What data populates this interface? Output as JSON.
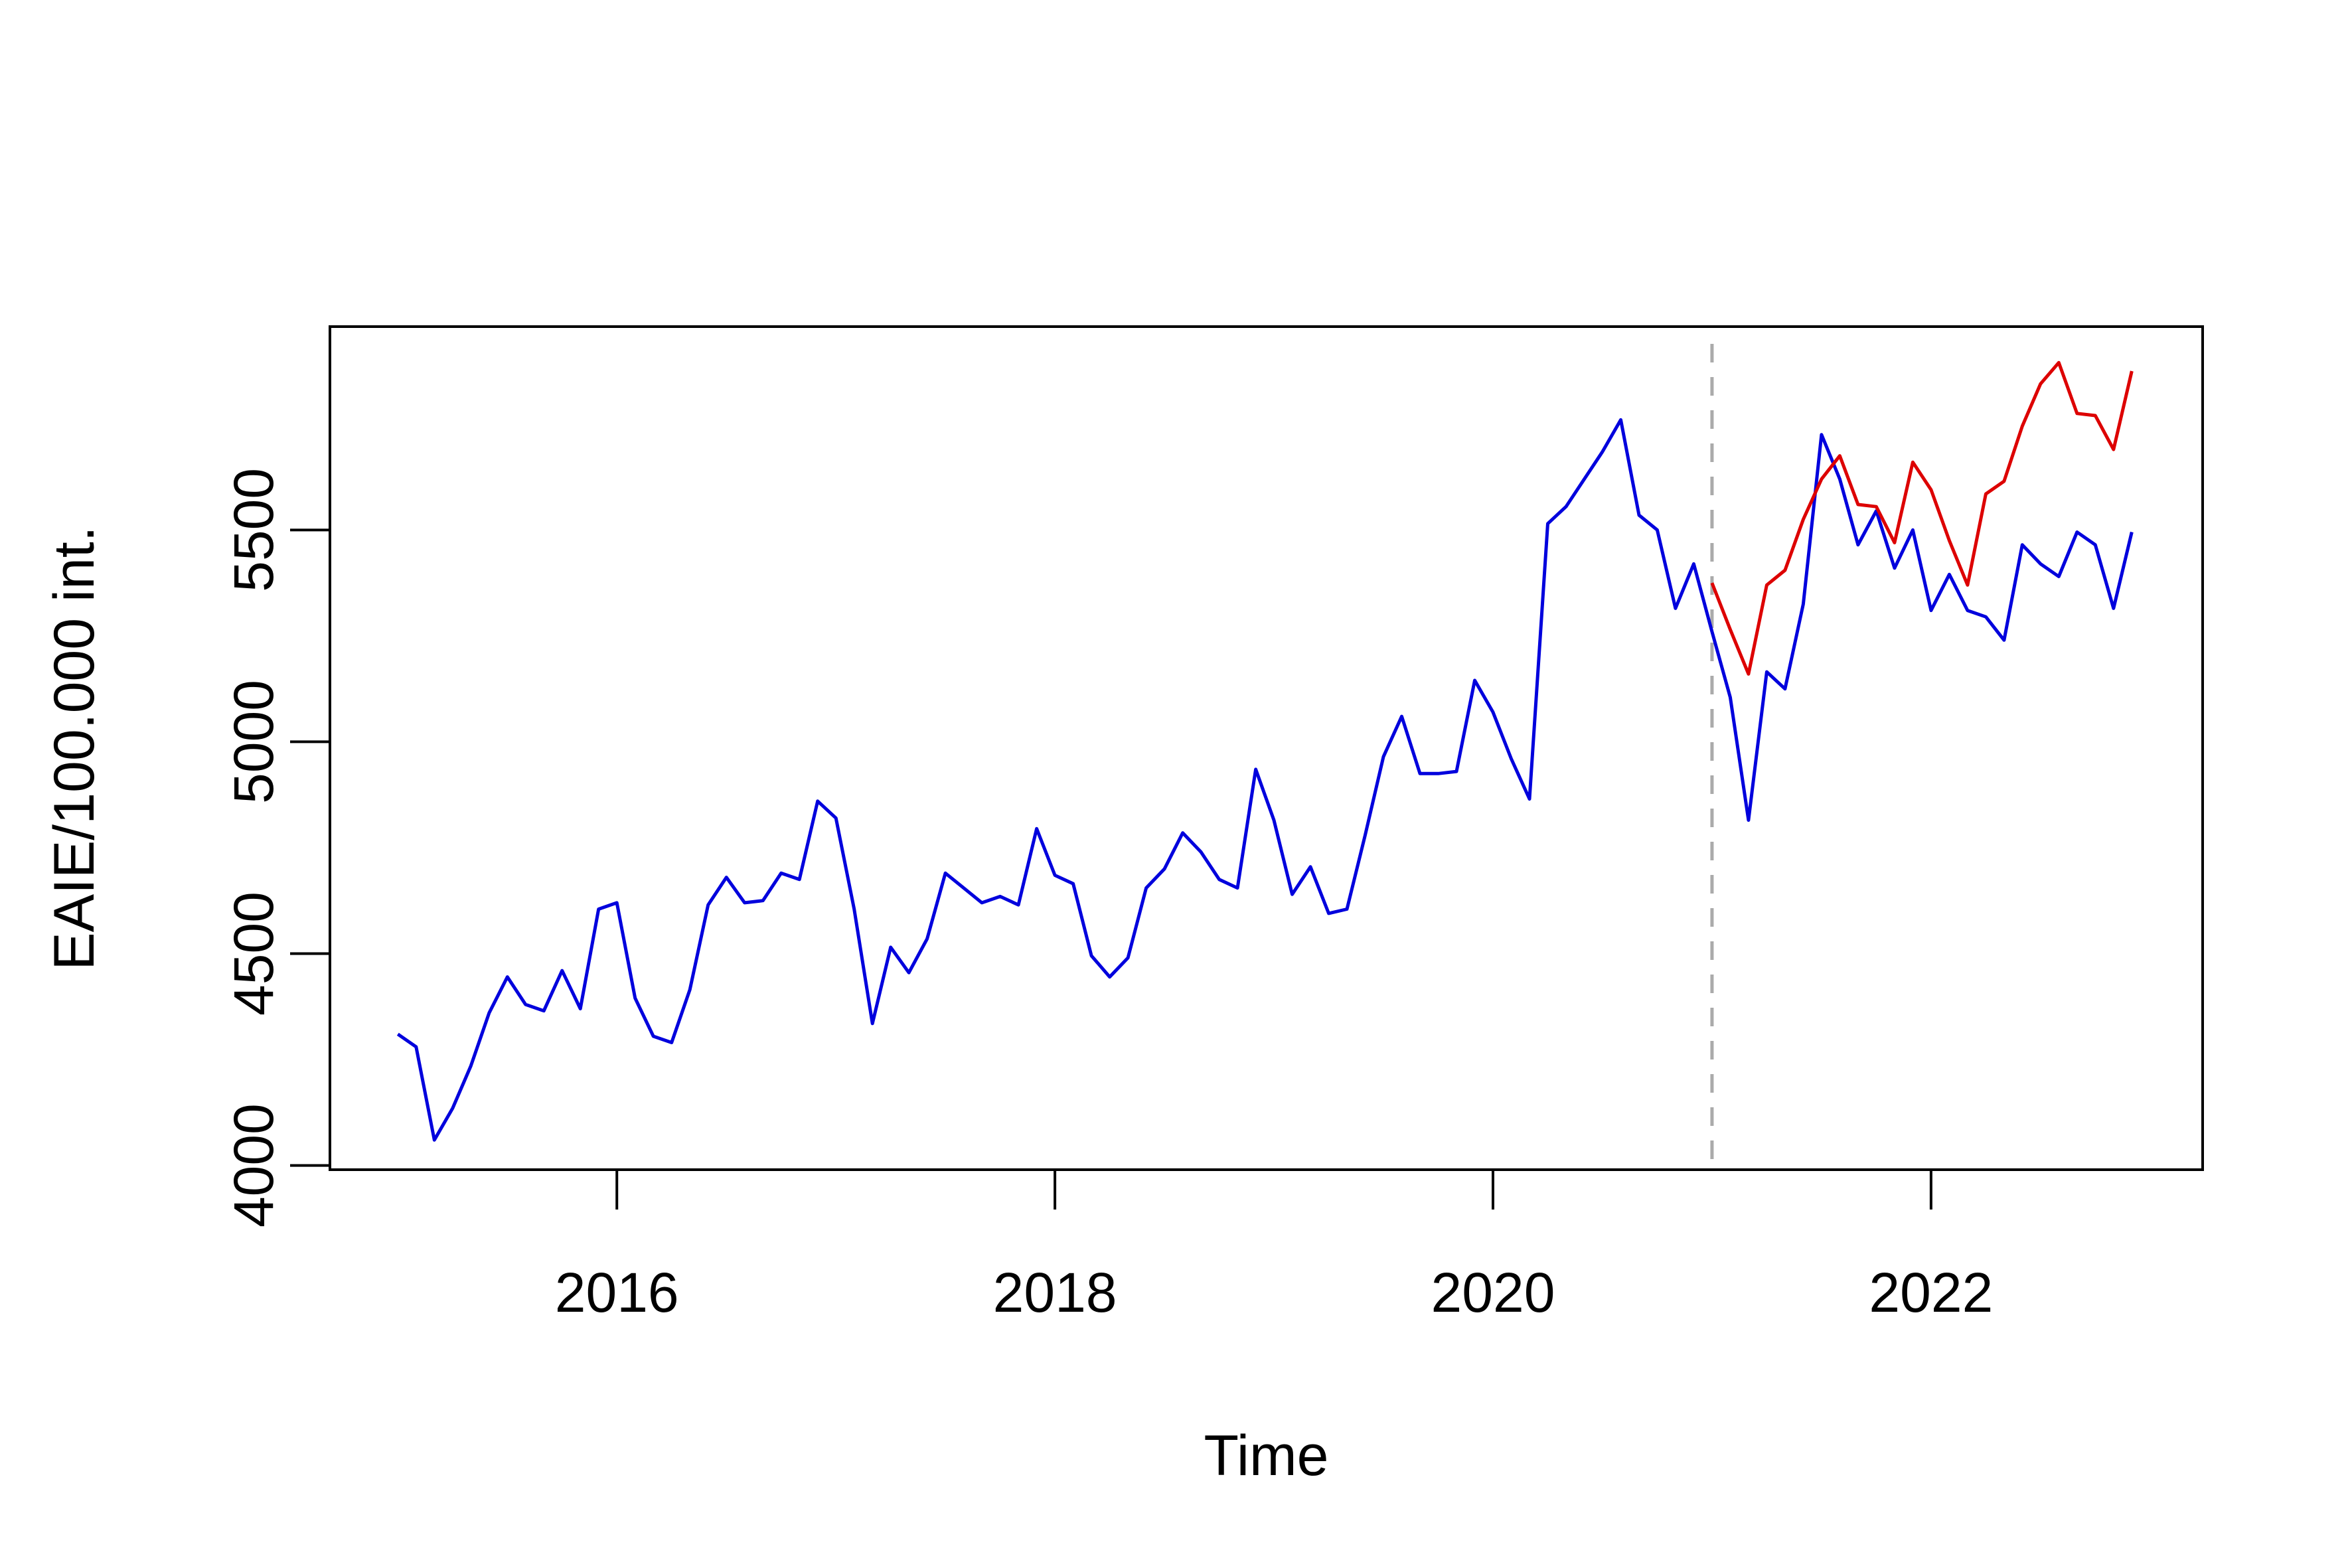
{
  "chart_data": {
    "type": "line",
    "title": "",
    "xlabel": "Time",
    "ylabel": "EAIE/100.000 int.",
    "xlim": [
      2014.69,
      2023.24
    ],
    "ylim": [
      3990,
      5980
    ],
    "x_ticks": [
      2016,
      2018,
      2020,
      2022
    ],
    "x_tick_labels": [
      "2016",
      "2018",
      "2020",
      "2022"
    ],
    "y_ticks": [
      4000,
      4500,
      5000,
      5500
    ],
    "y_tick_labels": [
      "4000",
      "4500",
      "5000",
      "5500"
    ],
    "grid": false,
    "legend": "none",
    "reference_line": {
      "x": 2021.0,
      "style": "dashed",
      "color": "#aaaaaa"
    },
    "series": [
      {
        "color": "#0000dd",
        "x_start": 2015.0,
        "x_step": 0.0833333333,
        "values": [
          4310,
          4280,
          4060,
          4135,
          4235,
          4360,
          4445,
          4380,
          4365,
          4460,
          4370,
          4605,
          4620,
          4395,
          4305,
          4290,
          4415,
          4615,
          4680,
          4620,
          4625,
          4690,
          4675,
          4860,
          4820,
          4605,
          4335,
          4515,
          4455,
          4535,
          4690,
          4655,
          4620,
          4635,
          4615,
          4795,
          4685,
          4665,
          4495,
          4445,
          4490,
          4655,
          4700,
          4785,
          4740,
          4675,
          4655,
          4935,
          4815,
          4640,
          4705,
          4595,
          4605,
          4780,
          4965,
          5060,
          4925,
          4925,
          4930,
          5145,
          5070,
          4960,
          4865,
          5515,
          5555,
          5620,
          5685,
          5760,
          5535,
          5500,
          5315,
          5420,
          5260,
          5105,
          4815,
          5165,
          5125,
          5325,
          5725,
          5620,
          5465,
          5545,
          5410,
          5500,
          5310,
          5395,
          5310,
          5295,
          5240,
          5465,
          5420,
          5390,
          5495,
          5465,
          5315,
          5495
        ]
      },
      {
        "color": "#dd0000",
        "x_start": 2021.0,
        "x_step": 0.0833333333,
        "values": [
          5375,
          5265,
          5160,
          5370,
          5405,
          5525,
          5620,
          5675,
          5560,
          5555,
          5470,
          5660,
          5595,
          5475,
          5370,
          5585,
          5615,
          5745,
          5845,
          5895,
          5775,
          5770,
          5690,
          5875
        ]
      }
    ]
  }
}
